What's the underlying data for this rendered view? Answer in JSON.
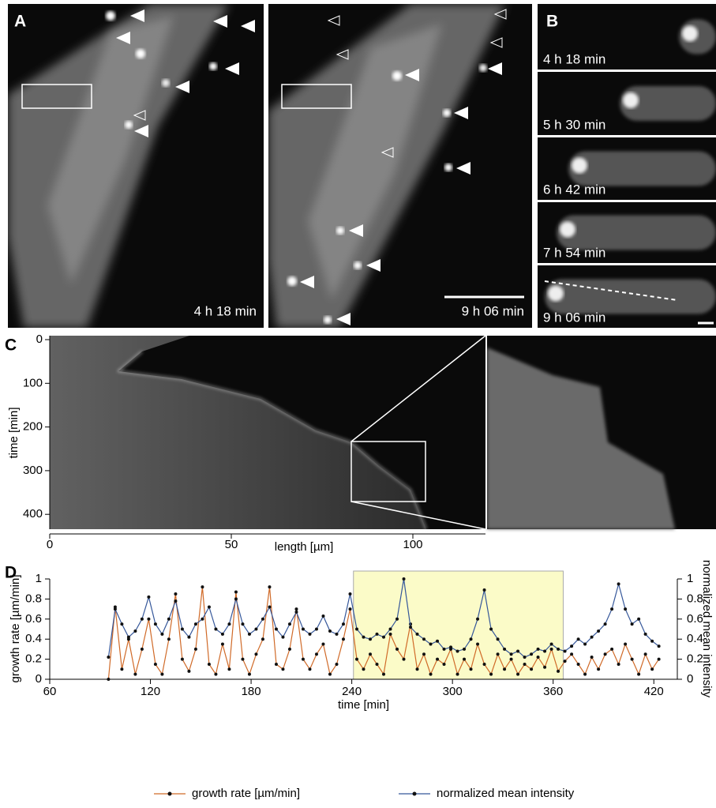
{
  "figure": {
    "panel_labels": [
      "A",
      "B",
      "C",
      "D"
    ],
    "panel_a": {
      "timestamps": [
        "4 h 18 min",
        "9 h 06 min"
      ]
    },
    "panel_b": {
      "timestamps": [
        "4 h 18 min",
        "5 h 30 min",
        "6 h 42 min",
        "7 h 54 min",
        "9 h 06 min"
      ]
    }
  },
  "chart_data": [
    {
      "type": "kymograph",
      "xlabel": "length [µm]",
      "ylabel": "time [min]",
      "xlim": [
        0,
        120
      ],
      "xticks": [
        0,
        50,
        100
      ],
      "ylim": [
        0,
        434
      ],
      "yticks": [
        0,
        100,
        200,
        300,
        400
      ],
      "y_inverted": true
    },
    {
      "type": "line",
      "xlabel": "time [min]",
      "ylabel": "growth rate [µm/min]",
      "y2label": "normalized mean intensity",
      "xlim": [
        60,
        434
      ],
      "xticks": [
        60,
        120,
        180,
        240,
        300,
        360,
        420
      ],
      "ylim": [
        0,
        1
      ],
      "yticks": [
        0,
        0.2,
        0.4,
        0.6,
        0.8,
        1
      ],
      "y2lim": [
        0,
        1
      ],
      "y2ticks": [
        0,
        0.2,
        0.4,
        0.6,
        0.8,
        1
      ],
      "highlight_range": [
        241,
        366
      ],
      "highlight_color": "#fbfbc8",
      "x": [
        95,
        99,
        103,
        107,
        111,
        115,
        119,
        123,
        127,
        131,
        135,
        139,
        143,
        147,
        151,
        155,
        159,
        163,
        167,
        171,
        175,
        179,
        183,
        187,
        191,
        195,
        199,
        203,
        207,
        211,
        215,
        219,
        223,
        227,
        231,
        235,
        239,
        243,
        247,
        251,
        255,
        259,
        263,
        267,
        271,
        275,
        279,
        283,
        287,
        291,
        295,
        299,
        303,
        307,
        311,
        315,
        319,
        323,
        327,
        331,
        335,
        339,
        343,
        347,
        351,
        355,
        359,
        363,
        367,
        371,
        375,
        379,
        383,
        387,
        391,
        395,
        399,
        403,
        407,
        411,
        415,
        419,
        423
      ],
      "series": [
        {
          "name": "growth rate [µm/min]",
          "color": "#d06a28",
          "values": [
            0.0,
            0.72,
            0.1,
            0.4,
            0.05,
            0.3,
            0.6,
            0.15,
            0.05,
            0.4,
            0.85,
            0.2,
            0.08,
            0.3,
            0.92,
            0.15,
            0.05,
            0.35,
            0.1,
            0.87,
            0.2,
            0.05,
            0.25,
            0.4,
            0.92,
            0.15,
            0.1,
            0.3,
            0.7,
            0.2,
            0.1,
            0.25,
            0.35,
            0.05,
            0.15,
            0.4,
            0.7,
            0.2,
            0.1,
            0.25,
            0.15,
            0.05,
            0.45,
            0.3,
            0.2,
            0.55,
            0.1,
            0.25,
            0.05,
            0.2,
            0.15,
            0.3,
            0.05,
            0.2,
            0.1,
            0.35,
            0.15,
            0.05,
            0.25,
            0.1,
            0.2,
            0.05,
            0.15,
            0.1,
            0.22,
            0.12,
            0.3,
            0.08,
            0.18,
            0.25,
            0.15,
            0.05,
            0.22,
            0.1,
            0.25,
            0.3,
            0.15,
            0.35,
            0.2,
            0.05,
            0.25,
            0.1,
            0.2
          ]
        },
        {
          "name": "normalized mean intensity",
          "color": "#35579a",
          "axis": "y2",
          "values": [
            0.22,
            0.7,
            0.55,
            0.42,
            0.48,
            0.6,
            0.82,
            0.55,
            0.45,
            0.6,
            0.78,
            0.5,
            0.42,
            0.55,
            0.6,
            0.72,
            0.5,
            0.45,
            0.55,
            0.8,
            0.55,
            0.45,
            0.5,
            0.6,
            0.72,
            0.5,
            0.42,
            0.55,
            0.67,
            0.5,
            0.45,
            0.5,
            0.63,
            0.48,
            0.45,
            0.55,
            0.85,
            0.5,
            0.42,
            0.4,
            0.45,
            0.42,
            0.5,
            0.6,
            1.0,
            0.52,
            0.45,
            0.4,
            0.35,
            0.38,
            0.3,
            0.32,
            0.28,
            0.3,
            0.4,
            0.6,
            0.89,
            0.5,
            0.4,
            0.3,
            0.25,
            0.28,
            0.22,
            0.25,
            0.3,
            0.28,
            0.35,
            0.3,
            0.28,
            0.33,
            0.4,
            0.35,
            0.42,
            0.48,
            0.55,
            0.7,
            0.95,
            0.7,
            0.55,
            0.6,
            0.45,
            0.38,
            0.33
          ]
        }
      ]
    }
  ]
}
